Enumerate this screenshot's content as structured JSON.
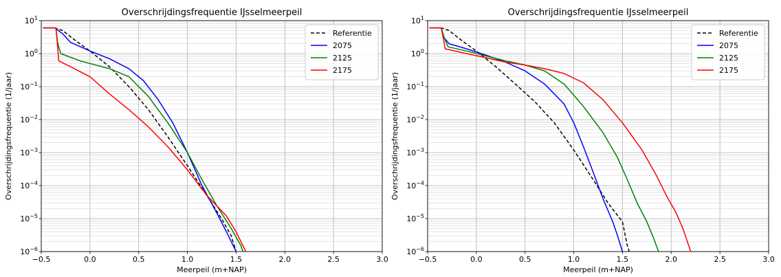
{
  "chart_data": [
    {
      "type": "line",
      "title": "Overschrijdingsfrequentie IJsselmeerpeil",
      "xlabel": "Meerpeil (m+NAP)",
      "ylabel": "Overschrijdingsfrequentie (1/jaar)",
      "xlim": [
        -0.5,
        3.0
      ],
      "ylim": [
        1e-06,
        10
      ],
      "yscale": "log",
      "grid": true,
      "legend_position": "top-right",
      "xticks": [
        "−0.5",
        "0.0",
        "0.5",
        "1.0",
        "1.5",
        "2.0",
        "2.5",
        "3.0"
      ],
      "yticks": [
        {
          "base": "10",
          "exp": "1"
        },
        {
          "base": "10",
          "exp": "0"
        },
        {
          "base": "10",
          "exp": "−1"
        },
        {
          "base": "10",
          "exp": "−2"
        },
        {
          "base": "10",
          "exp": "−3"
        },
        {
          "base": "10",
          "exp": "−4"
        },
        {
          "base": "10",
          "exp": "−5"
        },
        {
          "base": "10",
          "exp": "−6"
        }
      ],
      "series": [
        {
          "name": "Referentie",
          "color": "#000000",
          "dash": "dashed",
          "points": [
            [
              -0.48,
              6
            ],
            [
              -0.36,
              6
            ],
            [
              -0.28,
              5
            ],
            [
              -0.15,
              2.5
            ],
            [
              0,
              1.2
            ],
            [
              0.2,
              0.4
            ],
            [
              0.4,
              0.1
            ],
            [
              0.6,
              0.02
            ],
            [
              0.8,
              0.003
            ],
            [
              1.0,
              0.0004
            ],
            [
              1.2,
              5e-05
            ],
            [
              1.35,
              1e-05
            ],
            [
              1.45,
              3e-06
            ],
            [
              1.5,
              1e-06
            ]
          ]
        },
        {
          "name": "2075",
          "color": "#0000ff",
          "dash": "solid",
          "points": [
            [
              -0.48,
              6
            ],
            [
              -0.36,
              6
            ],
            [
              -0.28,
              4
            ],
            [
              -0.2,
              2.2
            ],
            [
              0,
              1.2
            ],
            [
              0.2,
              0.7
            ],
            [
              0.4,
              0.35
            ],
            [
              0.55,
              0.15
            ],
            [
              0.7,
              0.04
            ],
            [
              0.85,
              0.008
            ],
            [
              1.0,
              0.001
            ],
            [
              1.15,
              0.0001
            ],
            [
              1.3,
              1.5e-05
            ],
            [
              1.4,
              4e-06
            ],
            [
              1.45,
              2e-06
            ],
            [
              1.5,
              1e-06
            ]
          ]
        },
        {
          "name": "2125",
          "color": "#008000",
          "dash": "solid",
          "points": [
            [
              -0.48,
              6
            ],
            [
              -0.35,
              6
            ],
            [
              -0.33,
              2
            ],
            [
              -0.3,
              1.0
            ],
            [
              -0.1,
              0.6
            ],
            [
              0.2,
              0.35
            ],
            [
              0.4,
              0.2
            ],
            [
              0.6,
              0.05
            ],
            [
              0.8,
              0.008
            ],
            [
              1.0,
              0.001
            ],
            [
              1.15,
              0.00015
            ],
            [
              1.3,
              2.5e-05
            ],
            [
              1.45,
              5e-06
            ],
            [
              1.55,
              1.5e-06
            ],
            [
              1.57,
              1e-06
            ]
          ]
        },
        {
          "name": "2175",
          "color": "#ff0000",
          "dash": "solid",
          "points": [
            [
              -0.48,
              6
            ],
            [
              -0.35,
              6
            ],
            [
              -0.34,
              3
            ],
            [
              -0.32,
              0.6
            ],
            [
              -0.2,
              0.4
            ],
            [
              0,
              0.2
            ],
            [
              0.2,
              0.06
            ],
            [
              0.4,
              0.02
            ],
            [
              0.6,
              0.006
            ],
            [
              0.8,
              0.0015
            ],
            [
              1.0,
              0.0003
            ],
            [
              1.2,
              5e-05
            ],
            [
              1.4,
              1.2e-05
            ],
            [
              1.5,
              4e-06
            ],
            [
              1.57,
              1.5e-06
            ],
            [
              1.6,
              1e-06
            ]
          ]
        }
      ]
    },
    {
      "type": "line",
      "title": "Overschrijdingsfrequentie IJsselmeerpeil",
      "xlabel": "Meerpeil (m+NAP)",
      "ylabel": "Overschrijdingsfrequentie (1/jaar)",
      "xlim": [
        -0.5,
        3.0
      ],
      "ylim": [
        1e-06,
        10
      ],
      "yscale": "log",
      "grid": true,
      "legend_position": "top-right",
      "xticks": [
        "−0.5",
        "0.0",
        "0.5",
        "1.0",
        "1.5",
        "2.0",
        "2.5",
        "3.0"
      ],
      "yticks": [
        {
          "base": "10",
          "exp": "1"
        },
        {
          "base": "10",
          "exp": "0"
        },
        {
          "base": "10",
          "exp": "−1"
        },
        {
          "base": "10",
          "exp": "−2"
        },
        {
          "base": "10",
          "exp": "−3"
        },
        {
          "base": "10",
          "exp": "−4"
        },
        {
          "base": "10",
          "exp": "−5"
        },
        {
          "base": "10",
          "exp": "−6"
        }
      ],
      "series": [
        {
          "name": "Referentie",
          "color": "#000000",
          "dash": "dashed",
          "points": [
            [
              -0.48,
              6
            ],
            [
              -0.36,
              6
            ],
            [
              -0.28,
              5
            ],
            [
              -0.15,
              2.5
            ],
            [
              0,
              1.2
            ],
            [
              0.2,
              0.4
            ],
            [
              0.4,
              0.12
            ],
            [
              0.6,
              0.035
            ],
            [
              0.8,
              0.008
            ],
            [
              1.0,
              0.0012
            ],
            [
              1.2,
              0.00015
            ],
            [
              1.35,
              3e-05
            ],
            [
              1.5,
              8e-06
            ],
            [
              1.55,
              1.5e-06
            ],
            [
              1.57,
              1e-06
            ]
          ]
        },
        {
          "name": "2075",
          "color": "#0000ff",
          "dash": "solid",
          "points": [
            [
              -0.48,
              6
            ],
            [
              -0.36,
              6
            ],
            [
              -0.33,
              3
            ],
            [
              -0.28,
              2.0
            ],
            [
              -0.1,
              1.4
            ],
            [
              0.1,
              0.9
            ],
            [
              0.3,
              0.55
            ],
            [
              0.5,
              0.3
            ],
            [
              0.7,
              0.12
            ],
            [
              0.9,
              0.03
            ],
            [
              1.0,
              0.008
            ],
            [
              1.1,
              0.0015
            ],
            [
              1.2,
              0.00025
            ],
            [
              1.3,
              4e-05
            ],
            [
              1.4,
              8e-06
            ],
            [
              1.45,
              3e-06
            ],
            [
              1.5,
              1e-06
            ]
          ]
        },
        {
          "name": "2125",
          "color": "#008000",
          "dash": "solid",
          "points": [
            [
              -0.48,
              6
            ],
            [
              -0.36,
              6
            ],
            [
              -0.33,
              3
            ],
            [
              -0.29,
              1.6
            ],
            [
              -0.1,
              1.2
            ],
            [
              0.1,
              0.85
            ],
            [
              0.3,
              0.6
            ],
            [
              0.5,
              0.45
            ],
            [
              0.7,
              0.3
            ],
            [
              0.9,
              0.12
            ],
            [
              1.1,
              0.025
            ],
            [
              1.3,
              0.004
            ],
            [
              1.45,
              0.0007
            ],
            [
              1.55,
              0.00015
            ],
            [
              1.65,
              3e-05
            ],
            [
              1.75,
              8e-06
            ],
            [
              1.82,
              2.5e-06
            ],
            [
              1.87,
              1e-06
            ]
          ]
        },
        {
          "name": "2175",
          "color": "#ff0000",
          "dash": "solid",
          "points": [
            [
              -0.48,
              6
            ],
            [
              -0.36,
              6
            ],
            [
              -0.34,
              3
            ],
            [
              -0.32,
              1.4
            ],
            [
              -0.1,
              1.0
            ],
            [
              0.1,
              0.75
            ],
            [
              0.3,
              0.55
            ],
            [
              0.5,
              0.45
            ],
            [
              0.7,
              0.35
            ],
            [
              0.9,
              0.25
            ],
            [
              1.1,
              0.13
            ],
            [
              1.3,
              0.04
            ],
            [
              1.5,
              0.008
            ],
            [
              1.7,
              0.0012
            ],
            [
              1.85,
              0.0002
            ],
            [
              1.95,
              5e-05
            ],
            [
              2.05,
              1.5e-05
            ],
            [
              2.12,
              5e-06
            ],
            [
              2.18,
              1.5e-06
            ],
            [
              2.2,
              1e-06
            ]
          ]
        }
      ]
    }
  ]
}
